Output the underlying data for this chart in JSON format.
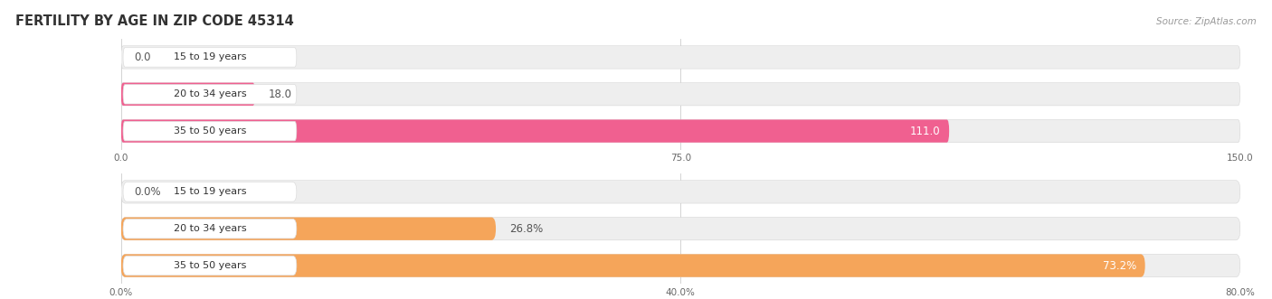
{
  "title": "FERTILITY BY AGE IN ZIP CODE 45314",
  "source": "Source: ZipAtlas.com",
  "top_chart": {
    "categories": [
      "15 to 19 years",
      "20 to 34 years",
      "35 to 50 years"
    ],
    "values": [
      0.0,
      18.0,
      111.0
    ],
    "xlim": [
      0,
      150
    ],
    "xticks": [
      0.0,
      75.0,
      150.0
    ],
    "xtick_labels": [
      "0.0",
      "75.0",
      "150.0"
    ],
    "bar_color": "#f06090",
    "bar_bg_color": "#eeeeee",
    "value_threshold": 100,
    "is_percent": false
  },
  "bottom_chart": {
    "categories": [
      "15 to 19 years",
      "20 to 34 years",
      "35 to 50 years"
    ],
    "values": [
      0.0,
      26.8,
      73.2
    ],
    "xlim": [
      0,
      80
    ],
    "xticks": [
      0.0,
      40.0,
      80.0
    ],
    "xtick_labels": [
      "0.0%",
      "40.0%",
      "80.0%"
    ],
    "bar_color": "#f5a55a",
    "bar_bg_color": "#eeeeee",
    "value_threshold": 65,
    "is_percent": true
  },
  "background_color": "#ffffff",
  "bar_height": 0.62,
  "label_fontsize": 8.5,
  "category_fontsize": 8.0,
  "title_fontsize": 10.5,
  "source_fontsize": 7.5,
  "pill_bg_color": "#ffffff",
  "pill_border_color": "#dddddd"
}
